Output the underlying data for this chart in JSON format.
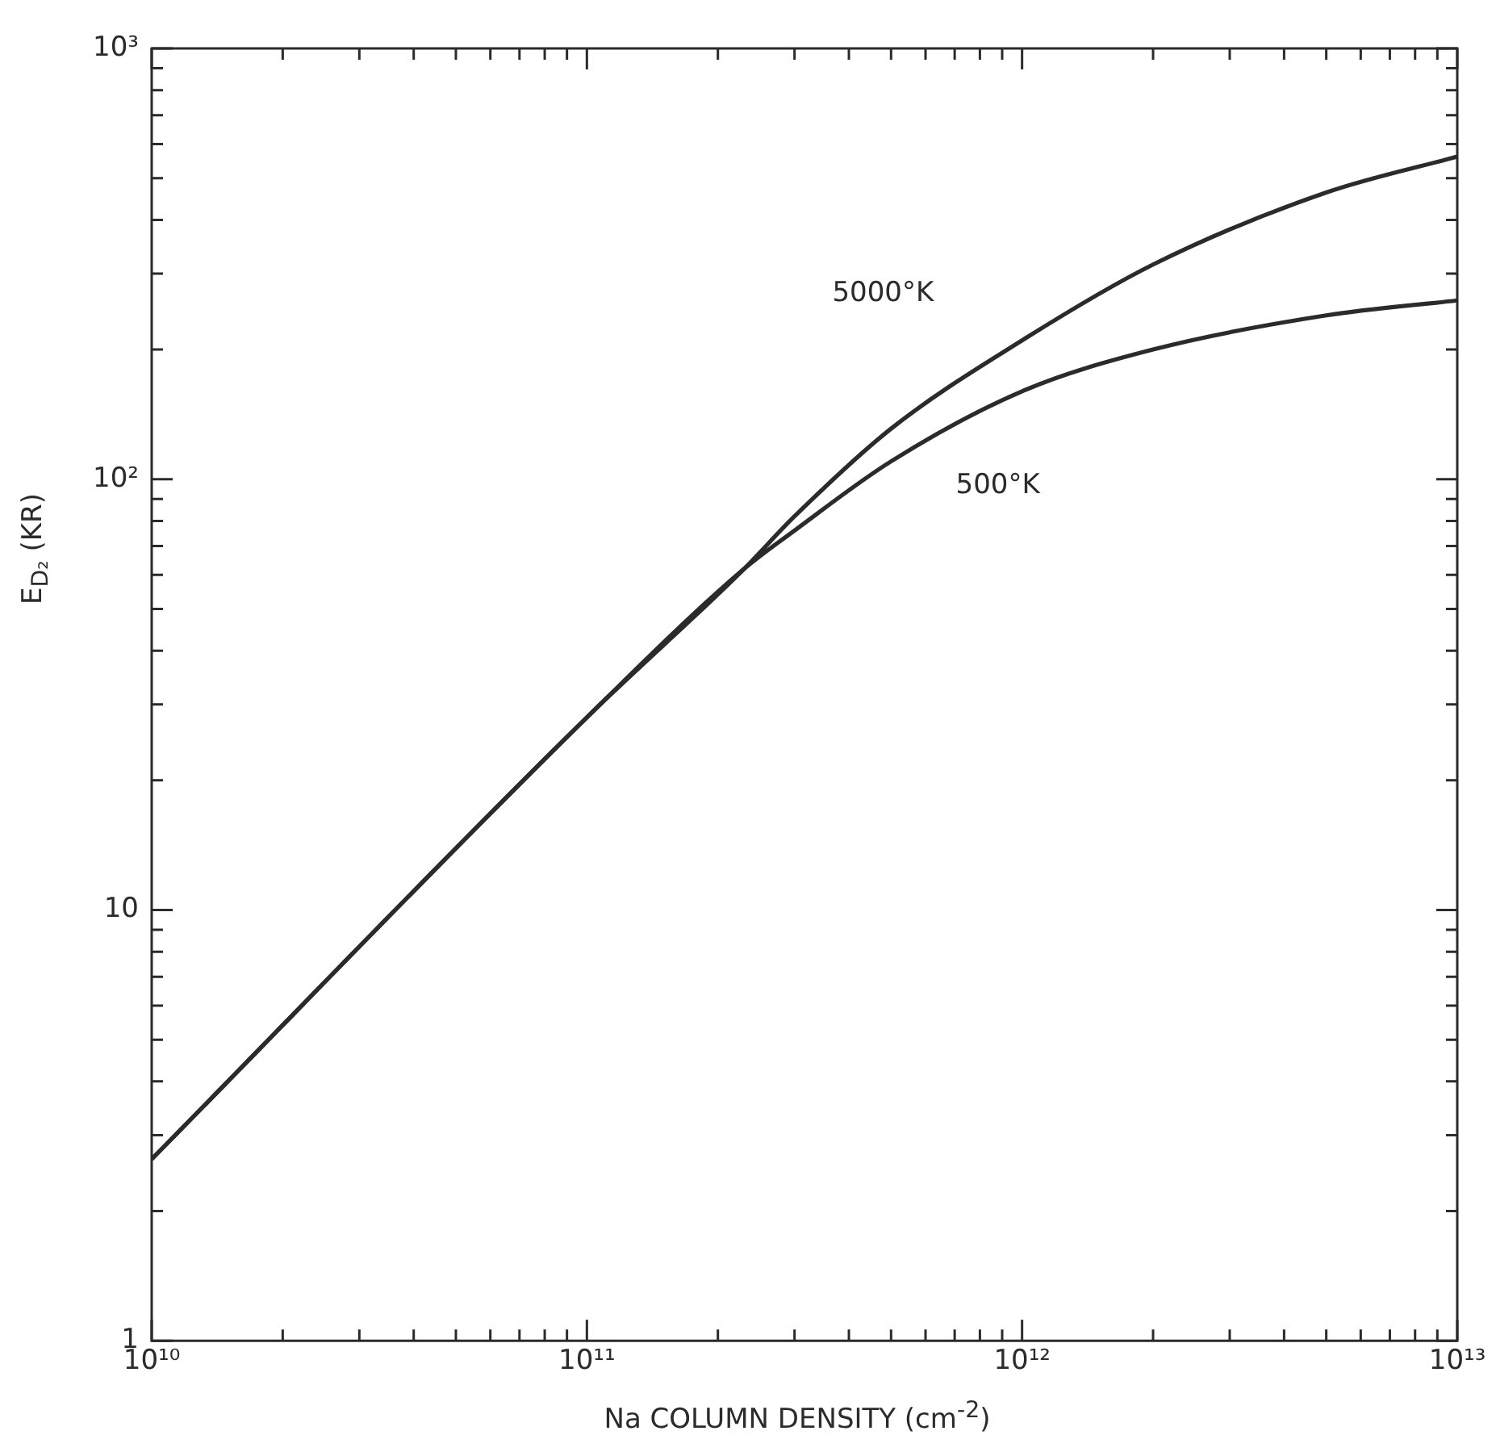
{
  "chart_data": {
    "type": "line",
    "xlabel": "Na COLUMN DENSITY (cm$^{-2}$)",
    "ylabel": "E$_{D₂}$ (KR)",
    "log": "xy",
    "grid": false,
    "legend": false,
    "marker": "none",
    "line_style": "solid",
    "x": [
      10000000000,
      100000000000,
      230000000000,
      300000000000,
      500000000000,
      1000000000000,
      2000000000000,
      5000000000000,
      10000000000000
    ],
    "series": [
      {
        "name": "5000°K",
        "color": "#2b2b2b",
        "values": [
          2.64,
          28,
          62,
          82,
          131,
          210,
          315,
          463,
          561
        ]
      },
      {
        "name": "500°K",
        "color": "#2b2b2b",
        "values": [
          2.64,
          28,
          62,
          76,
          110,
          160,
          200,
          240,
          260
        ]
      }
    ],
    "xlim": [
      10000000000,
      10000000000000
    ],
    "ylim": [
      1,
      1000
    ],
    "xticks": [
      {
        "value": 10000000000,
        "label": "10¹⁰"
      },
      {
        "value": 20000000000,
        "label": null
      },
      {
        "value": 30000000000,
        "label": null
      },
      {
        "value": 40000000000,
        "label": null
      },
      {
        "value": 50000000000,
        "label": null
      },
      {
        "value": 60000000000,
        "label": null
      },
      {
        "value": 70000000000,
        "label": null
      },
      {
        "value": 80000000000,
        "label": null
      },
      {
        "value": 90000000000,
        "label": null
      },
      {
        "value": 100000000000,
        "label": "10¹¹"
      },
      {
        "value": 200000000000,
        "label": null
      },
      {
        "value": 300000000000,
        "label": null
      },
      {
        "value": 400000000000,
        "label": null
      },
      {
        "value": 500000000000,
        "label": null
      },
      {
        "value": 600000000000,
        "label": null
      },
      {
        "value": 700000000000,
        "label": null
      },
      {
        "value": 800000000000,
        "label": null
      },
      {
        "value": 900000000000,
        "label": null
      },
      {
        "value": 1000000000000,
        "label": "10¹²"
      },
      {
        "value": 2000000000000,
        "label": null
      },
      {
        "value": 3000000000000,
        "label": null
      },
      {
        "value": 4000000000000,
        "label": null
      },
      {
        "value": 5000000000000,
        "label": null
      },
      {
        "value": 6000000000000,
        "label": null
      },
      {
        "value": 7000000000000,
        "label": null
      },
      {
        "value": 8000000000000,
        "label": null
      },
      {
        "value": 9000000000000,
        "label": null
      },
      {
        "value": 10000000000000,
        "label": "10¹³"
      }
    ],
    "yticks": [
      1,
      {
        "value": 2,
        "label": null
      },
      {
        "value": 3,
        "label": null
      },
      {
        "value": 4,
        "label": null
      },
      {
        "value": 5,
        "label": null
      },
      {
        "value": 6,
        "label": null
      },
      {
        "value": 7,
        "label": null
      },
      {
        "value": 8,
        "label": null
      },
      {
        "value": 9,
        "label": null
      },
      10,
      {
        "value": 20,
        "label": null
      },
      {
        "value": 30,
        "label": null
      },
      {
        "value": 40,
        "label": null
      },
      {
        "value": 50,
        "label": null
      },
      {
        "value": 60,
        "label": null
      },
      {
        "value": 70,
        "label": null
      },
      {
        "value": 80,
        "label": null
      },
      {
        "value": 90,
        "label": null
      },
      {
        "value": 100,
        "label": "10²"
      },
      {
        "value": 200,
        "label": null
      },
      {
        "value": 300,
        "label": null
      },
      {
        "value": 400,
        "label": null
      },
      {
        "value": 500,
        "label": null
      },
      {
        "value": 600,
        "label": null
      },
      {
        "value": 700,
        "label": null
      },
      {
        "value": 800,
        "label": null
      },
      {
        "value": 900,
        "label": null
      },
      {
        "value": 1000,
        "label": "10³"
      }
    ]
  }
}
